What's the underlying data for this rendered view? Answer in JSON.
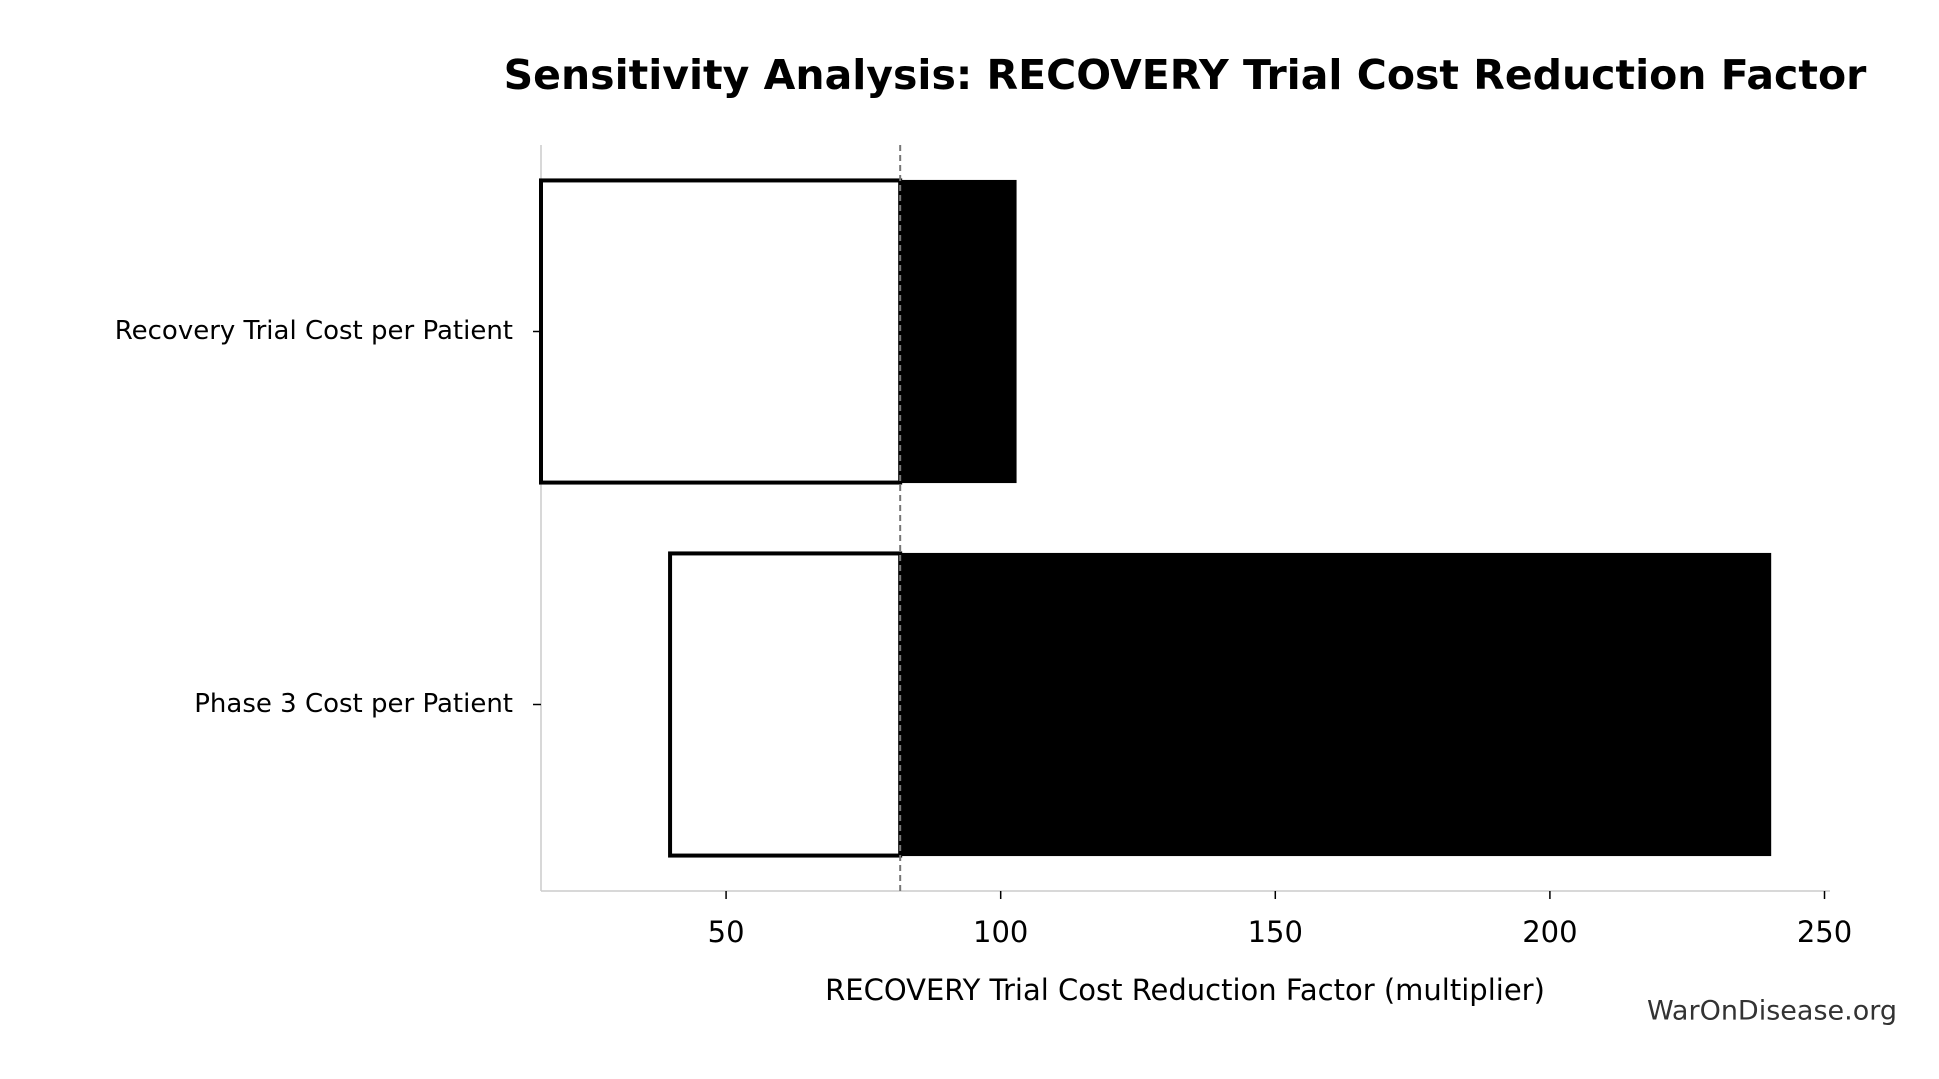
{
  "chart_data": {
    "type": "tornado",
    "title": "Sensitivity Analysis: RECOVERY Trial Cost Reduction Factor",
    "xlabel": "RECOVERY Trial Cost Reduction Factor (multiplier)",
    "watermark": "WarOnDisease.org",
    "categories": [
      "Recovery Trial Cost per Patient",
      "Phase 3 Cost per Patient"
    ],
    "baseline": 81.7,
    "low_values": [
      16.3,
      39.8
    ],
    "high_values": [
      102.8,
      240.2
    ],
    "low_color": "#ffffff",
    "high_color": "#000000",
    "edge_color": "#000000",
    "xlim": [
      16.3,
      251
    ],
    "xticks": [
      50,
      100,
      150,
      200,
      250
    ]
  }
}
